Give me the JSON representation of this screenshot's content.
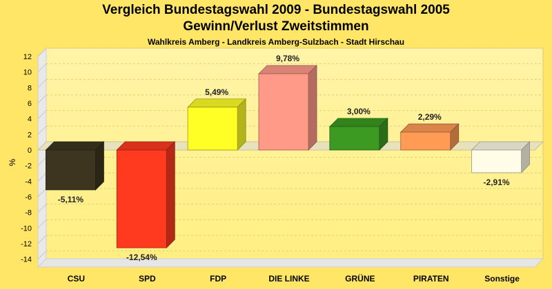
{
  "chart_data": {
    "type": "bar",
    "title": "Vergleich Bundestagswahl 2009 - Bundestagswahl 2005",
    "subtitle": "Gewinn/Verlust Zweitstimmen",
    "note": "Wahlkreis Amberg - Landkreis Amberg-Sulzbach - Stadt Hirschau",
    "ylabel": "%",
    "xlabel": "",
    "ylim": [
      -15,
      12
    ],
    "yticks": [
      12,
      10,
      8,
      6,
      4,
      2,
      0,
      -2,
      -4,
      -6,
      -8,
      -10,
      -12,
      -14
    ],
    "grid": true,
    "categories": [
      "CSU",
      "SPD",
      "FDP",
      "DIE LINKE",
      "GRÜNE",
      "PIRATEN",
      "Sonstige"
    ],
    "values": [
      -5.11,
      -12.54,
      5.49,
      9.78,
      3.0,
      2.29,
      -2.91
    ],
    "data_labels": [
      "-5,11%",
      "-12,54%",
      "5,49%",
      "9,78%",
      "3,00%",
      "2,29%",
      "-2,91%"
    ],
    "colors": [
      "#3d3520",
      "#ff3a1f",
      "#ffff26",
      "#ff9a88",
      "#3c9a22",
      "#ff9b55",
      "#fffce8"
    ]
  }
}
